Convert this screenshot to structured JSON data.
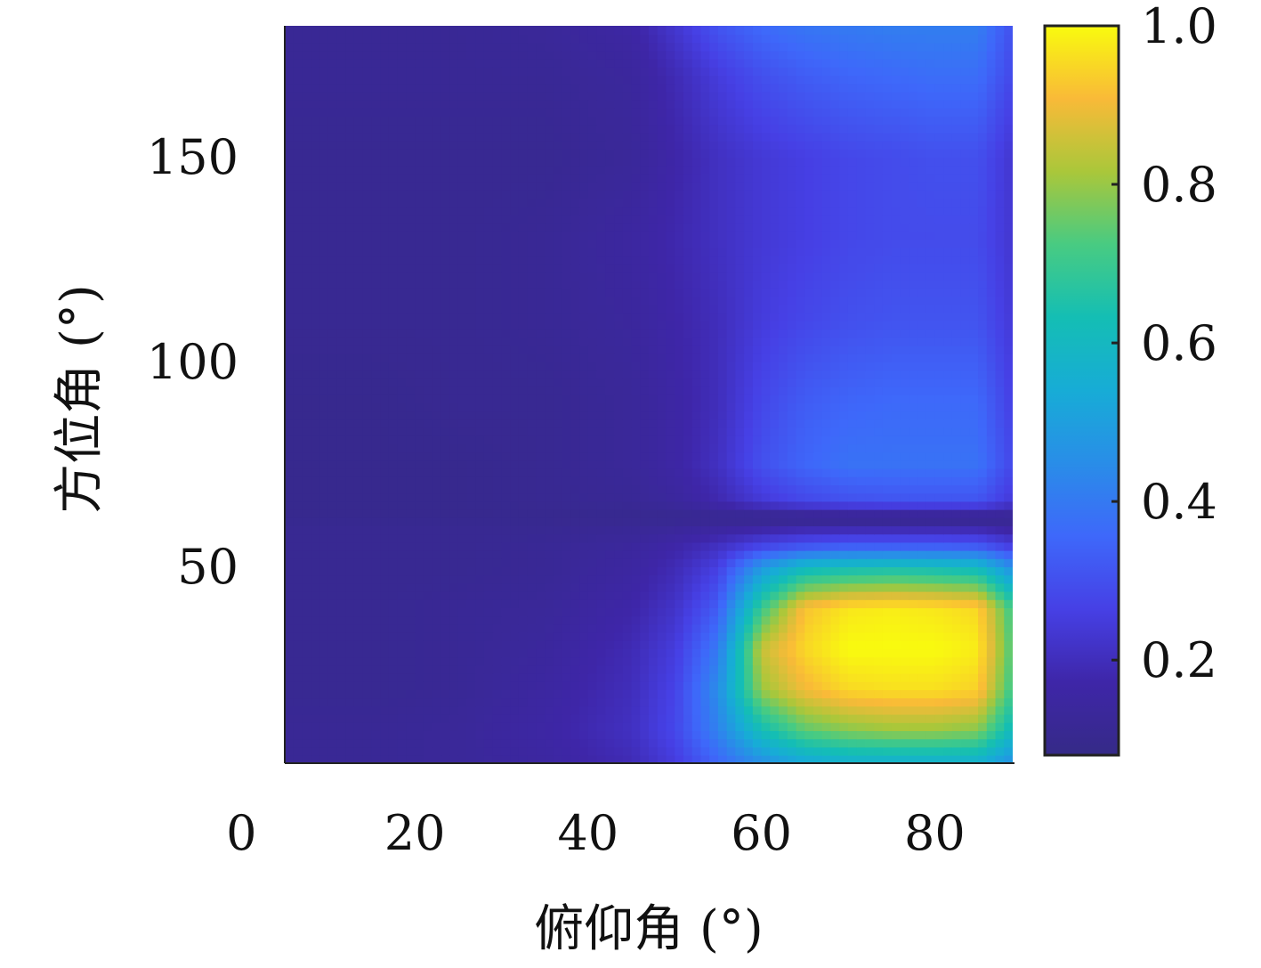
{
  "chart_data": {
    "type": "heatmap",
    "title": "",
    "xlabel": "俯仰角 (°)",
    "ylabel": "方位角 (°)",
    "xlim": [
      5,
      89
    ],
    "ylim": [
      2,
      182
    ],
    "x_ticks": [
      0,
      20,
      40,
      60,
      80
    ],
    "x_tick_labels": [
      "0",
      "20",
      "40",
      "60",
      "80"
    ],
    "y_ticks": [
      50,
      100,
      150
    ],
    "y_tick_labels": [
      "50",
      "100",
      "150"
    ],
    "grid": false,
    "colormap": "parula",
    "colorbar": {
      "range": [
        0.08,
        1.0
      ],
      "ticks": [
        0.2,
        0.4,
        0.6,
        0.8,
        1.0
      ],
      "tick_labels": [
        "0.2",
        "0.4",
        "0.6",
        "0.8",
        "1.0"
      ]
    },
    "value_grid": {
      "x": [
        5,
        15,
        25,
        35,
        45,
        50,
        55,
        60,
        65,
        70,
        75,
        80,
        85,
        89
      ],
      "y": [
        2,
        10,
        20,
        30,
        40,
        50,
        55,
        60,
        62,
        66,
        75,
        90,
        110,
        130,
        150,
        170,
        182
      ],
      "z": [
        [
          0.12,
          0.12,
          0.13,
          0.15,
          0.19,
          0.25,
          0.35,
          0.45,
          0.52,
          0.55,
          0.55,
          0.55,
          0.55,
          0.45
        ],
        [
          0.12,
          0.12,
          0.13,
          0.16,
          0.21,
          0.28,
          0.42,
          0.62,
          0.74,
          0.78,
          0.8,
          0.8,
          0.78,
          0.6
        ],
        [
          0.11,
          0.11,
          0.12,
          0.15,
          0.2,
          0.27,
          0.45,
          0.8,
          0.9,
          0.95,
          0.96,
          0.96,
          0.94,
          0.7
        ],
        [
          0.11,
          0.11,
          0.12,
          0.14,
          0.19,
          0.25,
          0.4,
          0.85,
          0.95,
          1.0,
          1.0,
          1.0,
          0.98,
          0.72
        ],
        [
          0.11,
          0.11,
          0.12,
          0.13,
          0.17,
          0.22,
          0.33,
          0.7,
          0.92,
          0.97,
          0.98,
          0.97,
          0.95,
          0.7
        ],
        [
          0.11,
          0.11,
          0.11,
          0.12,
          0.15,
          0.19,
          0.26,
          0.48,
          0.6,
          0.62,
          0.63,
          0.62,
          0.6,
          0.45
        ],
        [
          0.11,
          0.11,
          0.11,
          0.12,
          0.14,
          0.17,
          0.21,
          0.28,
          0.32,
          0.34,
          0.34,
          0.34,
          0.33,
          0.26
        ],
        [
          0.11,
          0.11,
          0.11,
          0.11,
          0.12,
          0.13,
          0.14,
          0.15,
          0.16,
          0.16,
          0.16,
          0.16,
          0.16,
          0.14
        ],
        [
          0.1,
          0.1,
          0.1,
          0.1,
          0.1,
          0.1,
          0.1,
          0.09,
          0.09,
          0.09,
          0.09,
          0.09,
          0.09,
          0.1
        ],
        [
          0.1,
          0.1,
          0.1,
          0.11,
          0.12,
          0.14,
          0.18,
          0.24,
          0.28,
          0.3,
          0.31,
          0.31,
          0.31,
          0.24
        ],
        [
          0.1,
          0.1,
          0.1,
          0.11,
          0.13,
          0.16,
          0.21,
          0.3,
          0.35,
          0.38,
          0.38,
          0.38,
          0.38,
          0.28
        ],
        [
          0.1,
          0.1,
          0.11,
          0.11,
          0.13,
          0.16,
          0.2,
          0.28,
          0.33,
          0.35,
          0.36,
          0.36,
          0.36,
          0.26
        ],
        [
          0.11,
          0.11,
          0.11,
          0.12,
          0.14,
          0.17,
          0.2,
          0.25,
          0.28,
          0.3,
          0.31,
          0.31,
          0.31,
          0.24
        ],
        [
          0.11,
          0.11,
          0.11,
          0.12,
          0.15,
          0.18,
          0.21,
          0.24,
          0.26,
          0.28,
          0.29,
          0.29,
          0.29,
          0.23
        ],
        [
          0.11,
          0.11,
          0.11,
          0.11,
          0.13,
          0.17,
          0.21,
          0.24,
          0.26,
          0.28,
          0.29,
          0.3,
          0.3,
          0.23
        ],
        [
          0.12,
          0.12,
          0.12,
          0.12,
          0.14,
          0.19,
          0.25,
          0.3,
          0.33,
          0.35,
          0.36,
          0.37,
          0.37,
          0.28
        ],
        [
          0.12,
          0.12,
          0.12,
          0.13,
          0.16,
          0.23,
          0.31,
          0.36,
          0.39,
          0.4,
          0.41,
          0.41,
          0.41,
          0.3
        ]
      ]
    }
  }
}
